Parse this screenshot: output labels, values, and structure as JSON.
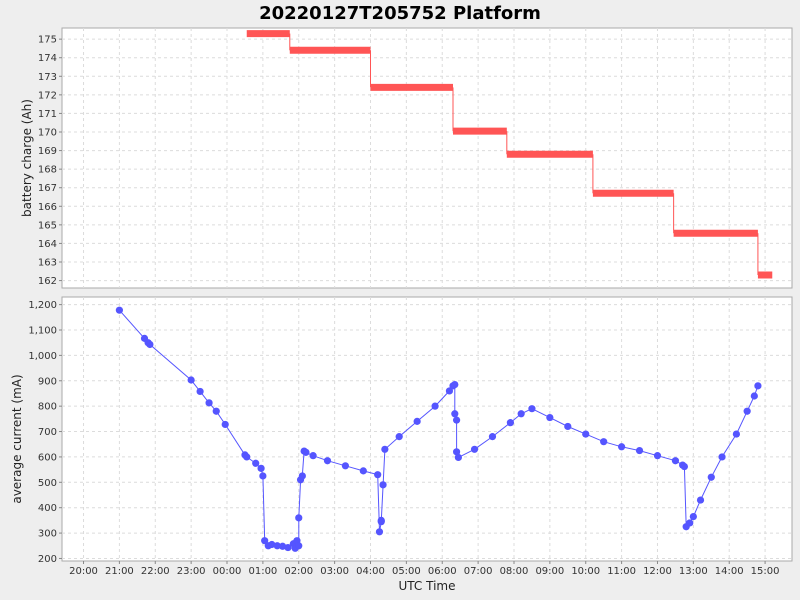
{
  "chart_data": [
    {
      "type": "line",
      "title": "20220127T205752 Platform",
      "xlabel": "",
      "ylabel": "battery charge (Ah)",
      "ylim": [
        161.6,
        175.6
      ],
      "yticks": [
        "162",
        "163",
        "164",
        "165",
        "166",
        "167",
        "168",
        "169",
        "170",
        "171",
        "172",
        "173",
        "174",
        "175"
      ],
      "color": "#ff5555",
      "series": [
        {
          "values": [
            {
              "x0": 0.55,
              "x1": 1.75,
              "y": 175.3
            },
            {
              "x0": 1.75,
              "x1": 4.0,
              "y": 174.4
            },
            {
              "x0": 4.0,
              "x1": 6.3,
              "y": 172.4
            },
            {
              "x0": 6.3,
              "x1": 7.8,
              "y": 170.05
            },
            {
              "x0": 7.8,
              "x1": 10.2,
              "y": 168.8
            },
            {
              "x0": 10.2,
              "x1": 12.45,
              "y": 166.7
            },
            {
              "x0": 12.45,
              "x1": 14.8,
              "y": 164.55
            },
            {
              "x0": 14.8,
              "x1": 15.2,
              "y": 162.3
            }
          ]
        }
      ]
    },
    {
      "type": "scatter",
      "xlabel": "UTC Time",
      "ylabel": "average current (mA)",
      "ylim": [
        190,
        1230
      ],
      "yticks": [
        "200",
        "300",
        "400",
        "500",
        "600",
        "700",
        "800",
        "900",
        "1,000",
        "1,100",
        "1,200"
      ],
      "xticks": [
        "20:00",
        "21:00",
        "22:00",
        "23:00",
        "00:00",
        "01:00",
        "02:00",
        "03:00",
        "04:00",
        "05:00",
        "06:00",
        "07:00",
        "08:00",
        "09:00",
        "10:00",
        "11:00",
        "12:00",
        "13:00",
        "14:00",
        "15:00"
      ],
      "xlim": [
        -4.6,
        15.75
      ],
      "color": "#5555ff",
      "series": [
        {
          "x": [
            -3.0,
            -2.3,
            -2.2,
            -2.15,
            -1.0,
            -0.75,
            -0.5,
            -0.3,
            -0.05,
            0.5,
            0.55,
            0.8,
            0.95,
            1.0,
            1.05,
            1.15,
            1.25,
            1.4,
            1.55,
            1.7,
            1.85,
            1.9,
            1.95,
            2.0,
            2.0,
            2.05,
            2.1,
            2.15,
            2.2,
            2.4,
            2.8,
            3.3,
            3.8,
            4.2,
            4.25,
            4.3,
            4.3,
            4.35,
            4.4,
            4.8,
            5.3,
            5.8,
            6.2,
            6.3,
            6.35,
            6.35,
            6.4,
            6.4,
            6.45,
            6.9,
            7.4,
            7.9,
            8.2,
            8.5,
            9.0,
            9.5,
            10.0,
            10.5,
            11.0,
            11.5,
            12.0,
            12.5,
            12.7,
            12.75,
            12.8,
            12.9,
            13.0,
            13.2,
            13.5,
            13.8,
            14.2,
            14.5,
            14.7,
            14.8
          ],
          "y": [
            1178,
            1067,
            1050,
            1043,
            903,
            858,
            813,
            780,
            728,
            608,
            600,
            575,
            555,
            525,
            270,
            250,
            255,
            250,
            248,
            243,
            258,
            240,
            270,
            250,
            360,
            510,
            525,
            623,
            618,
            605,
            585,
            565,
            545,
            530,
            305,
            345,
            350,
            490,
            630,
            680,
            740,
            800,
            860,
            880,
            885,
            770,
            745,
            620,
            598,
            630,
            680,
            735,
            770,
            790,
            755,
            720,
            690,
            660,
            640,
            625,
            605,
            585,
            568,
            562,
            325,
            340,
            365,
            430,
            520,
            600,
            690,
            780,
            840,
            880
          ]
        }
      ]
    }
  ]
}
